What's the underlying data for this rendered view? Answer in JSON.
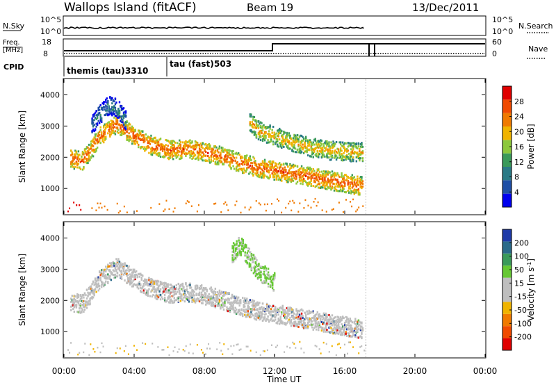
{
  "header": {
    "station": "Wallops Island (fitACF)",
    "beam": "Beam 19",
    "date": "13/Dec/2011"
  },
  "left_labels": {
    "nsky": "N.Sky",
    "freq_line1": "Freq.",
    "freq_line2": "[MHz]",
    "cpid": "CPID"
  },
  "right_labels": {
    "nsearch": "N.Search",
    "nave": "Nave"
  },
  "axis_ticks": {
    "nsky": [
      "10^5",
      "10^0"
    ],
    "nsearch": [
      "10^5",
      "10^0"
    ],
    "freq": [
      "18",
      "8"
    ],
    "nave": [
      "60",
      "0"
    ]
  },
  "cpid_segments": [
    {
      "name": "themis (tau)",
      "id": "3310",
      "start_h": 0.0,
      "end_h": 6.0
    },
    {
      "name": "tau (fast)",
      "id": "503",
      "start_h": 6.0,
      "end_h": 17.2
    }
  ],
  "colors": {
    "power_scale": [
      "#0000ee",
      "#1e4fa6",
      "#2a7a86",
      "#3a9a5a",
      "#8cc83c",
      "#f0b400",
      "#f07a00",
      "#f04a00",
      "#e00000"
    ],
    "velocity_scale": [
      "#e00000",
      "#f04a00",
      "#f07a00",
      "#f0b400",
      "#bebebe",
      "#bebebe",
      "#66c833",
      "#3a9a5a",
      "#2a6a8a",
      "#1e3aa8"
    ]
  },
  "chart_data": [
    {
      "type": "heatmap",
      "title": "",
      "panel": "power",
      "ylabel": "Slant Range [km]",
      "xlabel": "",
      "yticks": [
        "1000",
        "2000",
        "3000",
        "4000"
      ],
      "ylim": [
        180,
        4500
      ],
      "xlim": [
        0,
        24
      ],
      "data_end_h": 17.2,
      "colorbar": {
        "label": "Power [dB]",
        "ticks": [
          "4",
          "8",
          "12",
          "16",
          "20",
          "24",
          "28"
        ],
        "range": [
          0,
          32
        ]
      },
      "echo_bands": [
        {
          "t": [
            0.3,
            1.0,
            1.5,
            2.0,
            3.0,
            4.0,
            5.0,
            6.0,
            7.0,
            8.0,
            9.0,
            10.0,
            11.0,
            12.0,
            13.0,
            14.0,
            15.0,
            16.0,
            17.0
          ],
          "range_km": [
            2000,
            1900,
            2250,
            2700,
            3100,
            2700,
            2400,
            2250,
            2300,
            2200,
            2050,
            1850,
            1700,
            1600,
            1500,
            1400,
            1300,
            1200,
            1100
          ],
          "value": 27
        },
        {
          "t": [
            10.5,
            11.0,
            12.0,
            13.0,
            14.0,
            15.0,
            16.0,
            17.0
          ],
          "range_km": [
            3200,
            2900,
            2700,
            2500,
            2350,
            2250,
            2200,
            2200
          ],
          "value": 22
        },
        {
          "t": [
            1.5,
            2.0,
            2.5,
            3.0,
            3.5
          ],
          "range_km": [
            3000,
            3400,
            3700,
            3600,
            3200
          ],
          "value": 10
        }
      ]
    },
    {
      "type": "heatmap",
      "title": "",
      "panel": "velocity",
      "ylabel": "Slant Range [km]",
      "xlabel": "Time UT",
      "xticks": [
        "00:00",
        "04:00",
        "08:00",
        "12:00",
        "16:00",
        "20:00",
        "00:00"
      ],
      "yticks": [
        "1000",
        "2000",
        "3000",
        "4000"
      ],
      "ylim": [
        180,
        4500
      ],
      "xlim": [
        0,
        24
      ],
      "data_end_h": 17.2,
      "colorbar": {
        "label": "Velocity [m s^-1]",
        "ticks": [
          "-200",
          "-100",
          "-50",
          "-15",
          "15",
          "50",
          "100",
          "200"
        ]
      },
      "echo_bands": [
        {
          "t": [
            0.3,
            1.0,
            1.5,
            2.0,
            3.0,
            4.0,
            5.0,
            6.0,
            7.0,
            8.0,
            9.0,
            10.0,
            11.0,
            12.0,
            13.0,
            14.0,
            15.0,
            16.0,
            17.0
          ],
          "range_km": [
            2000,
            1900,
            2250,
            2700,
            3100,
            2700,
            2400,
            2250,
            2300,
            2200,
            2050,
            1850,
            1700,
            1600,
            1500,
            1400,
            1300,
            1200,
            1100
          ],
          "value": 0
        },
        {
          "t": [
            9.5,
            10.0,
            11.0,
            12.0
          ],
          "range_km": [
            3500,
            3800,
            3000,
            2600
          ],
          "value": 40
        }
      ]
    }
  ]
}
